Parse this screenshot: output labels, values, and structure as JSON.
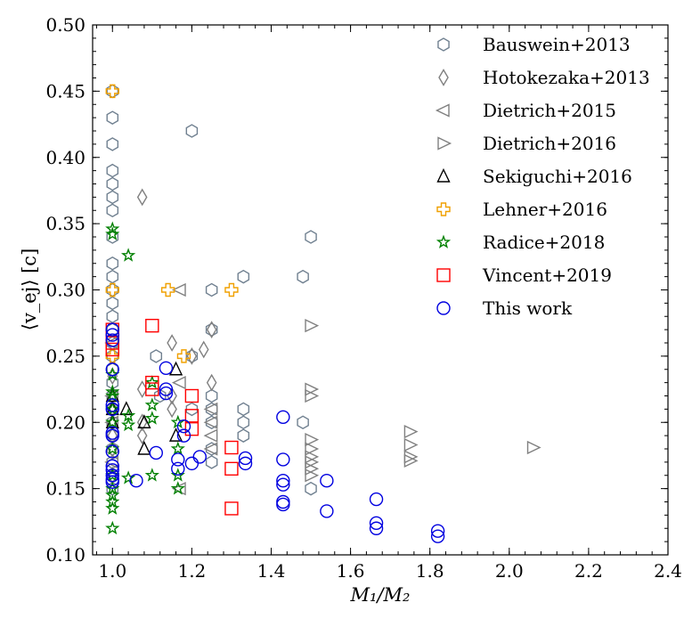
{
  "chart_data": {
    "type": "scatter",
    "title": "",
    "xlabel": "M₁/M₂",
    "ylabel": "⟨v_ej⟩ [c]",
    "xlim": [
      0.95,
      2.4
    ],
    "ylim": [
      0.1,
      0.5
    ],
    "x_ticks": [
      "1.0",
      "1.2",
      "1.4",
      "1.6",
      "1.8",
      "2.0",
      "2.2",
      "2.4"
    ],
    "y_ticks": [
      "0.10",
      "0.15",
      "0.20",
      "0.25",
      "0.30",
      "0.35",
      "0.40",
      "0.45",
      "0.50"
    ],
    "x_tick_values": [
      1.0,
      1.2,
      1.4,
      1.6,
      1.8,
      2.0,
      2.2,
      2.4
    ],
    "y_tick_values": [
      0.1,
      0.15,
      0.2,
      0.25,
      0.3,
      0.35,
      0.4,
      0.45,
      0.5
    ],
    "grid": false,
    "legend_position": "top-right",
    "series": [
      {
        "name": "Bauswein+2013",
        "marker": "hexagon",
        "color": "#708090",
        "points": [
          [
            1.0,
            0.45
          ],
          [
            1.0,
            0.43
          ],
          [
            1.0,
            0.41
          ],
          [
            1.0,
            0.39
          ],
          [
            1.0,
            0.38
          ],
          [
            1.0,
            0.37
          ],
          [
            1.0,
            0.36
          ],
          [
            1.0,
            0.34
          ],
          [
            1.0,
            0.32
          ],
          [
            1.0,
            0.31
          ],
          [
            1.0,
            0.3
          ],
          [
            1.0,
            0.29
          ],
          [
            1.0,
            0.28
          ],
          [
            1.0,
            0.27
          ],
          [
            1.0,
            0.26
          ],
          [
            1.0,
            0.25
          ],
          [
            1.0,
            0.24
          ],
          [
            1.0,
            0.23
          ],
          [
            1.0,
            0.22
          ],
          [
            1.0,
            0.21
          ],
          [
            1.0,
            0.2
          ],
          [
            1.0,
            0.19
          ],
          [
            1.0,
            0.18
          ],
          [
            1.0,
            0.17
          ],
          [
            1.0,
            0.16
          ],
          [
            1.0,
            0.15
          ],
          [
            1.11,
            0.25
          ],
          [
            1.12,
            0.22
          ],
          [
            1.2,
            0.42
          ],
          [
            1.2,
            0.25
          ],
          [
            1.2,
            0.21
          ],
          [
            1.25,
            0.3
          ],
          [
            1.25,
            0.27
          ],
          [
            1.25,
            0.22
          ],
          [
            1.25,
            0.21
          ],
          [
            1.25,
            0.2
          ],
          [
            1.25,
            0.18
          ],
          [
            1.25,
            0.17
          ],
          [
            1.33,
            0.31
          ],
          [
            1.33,
            0.21
          ],
          [
            1.33,
            0.2
          ],
          [
            1.33,
            0.19
          ],
          [
            1.48,
            0.31
          ],
          [
            1.48,
            0.2
          ],
          [
            1.5,
            0.34
          ],
          [
            1.5,
            0.15
          ]
        ]
      },
      {
        "name": "Hotokezaka+2013",
        "marker": "thin-diamond",
        "color": "#808080",
        "points": [
          [
            1.0,
            0.235
          ],
          [
            1.0,
            0.21
          ],
          [
            1.0,
            0.19
          ],
          [
            1.0,
            0.18
          ],
          [
            1.0,
            0.16
          ],
          [
            1.075,
            0.37
          ],
          [
            1.075,
            0.225
          ],
          [
            1.075,
            0.2
          ],
          [
            1.075,
            0.19
          ],
          [
            1.15,
            0.26
          ],
          [
            1.15,
            0.22
          ],
          [
            1.15,
            0.21
          ],
          [
            1.2,
            0.25
          ],
          [
            1.23,
            0.255
          ],
          [
            1.25,
            0.27
          ],
          [
            1.25,
            0.23
          ]
        ]
      },
      {
        "name": "Dietrich+2015",
        "marker": "triangle-left",
        "color": "#808080",
        "points": [
          [
            1.0,
            0.26
          ],
          [
            1.0,
            0.22
          ],
          [
            1.0,
            0.2
          ],
          [
            1.0,
            0.17
          ],
          [
            1.17,
            0.3
          ],
          [
            1.17,
            0.23
          ],
          [
            1.17,
            0.15
          ],
          [
            1.25,
            0.21
          ],
          [
            1.25,
            0.2
          ],
          [
            1.25,
            0.19
          ],
          [
            1.25,
            0.18
          ]
        ]
      },
      {
        "name": "Dietrich+2016",
        "marker": "triangle-right",
        "color": "#808080",
        "points": [
          [
            1.5,
            0.273
          ],
          [
            1.5,
            0.225
          ],
          [
            1.5,
            0.22
          ],
          [
            1.5,
            0.187
          ],
          [
            1.5,
            0.18
          ],
          [
            1.5,
            0.174
          ],
          [
            1.5,
            0.17
          ],
          [
            1.5,
            0.165
          ],
          [
            1.5,
            0.16
          ],
          [
            1.75,
            0.193
          ],
          [
            1.75,
            0.183
          ],
          [
            1.75,
            0.174
          ],
          [
            1.75,
            0.171
          ],
          [
            2.06,
            0.181
          ]
        ]
      },
      {
        "name": "Sekiguchi+2016",
        "marker": "triangle-up",
        "color": "#000000",
        "points": [
          [
            1.0,
            0.22
          ],
          [
            1.0,
            0.21
          ],
          [
            1.0,
            0.2
          ],
          [
            1.035,
            0.21
          ],
          [
            1.08,
            0.2
          ],
          [
            1.08,
            0.18
          ],
          [
            1.16,
            0.24
          ],
          [
            1.16,
            0.19
          ]
        ]
      },
      {
        "name": "Lehner+2016",
        "marker": "plus",
        "color": "#f0a000",
        "points": [
          [
            1.0,
            0.45
          ],
          [
            1.0,
            0.3
          ],
          [
            1.0,
            0.25
          ],
          [
            1.14,
            0.3
          ],
          [
            1.3,
            0.3
          ],
          [
            1.18,
            0.25
          ]
        ]
      },
      {
        "name": "Radice+2018",
        "marker": "star",
        "color": "#008000",
        "points": [
          [
            1.0,
            0.346
          ],
          [
            1.0,
            0.342
          ],
          [
            1.0,
            0.236
          ],
          [
            1.0,
            0.223
          ],
          [
            1.0,
            0.22
          ],
          [
            1.0,
            0.21
          ],
          [
            1.0,
            0.2
          ],
          [
            1.0,
            0.18
          ],
          [
            1.0,
            0.16
          ],
          [
            1.0,
            0.15
          ],
          [
            1.0,
            0.145
          ],
          [
            1.0,
            0.14
          ],
          [
            1.0,
            0.135
          ],
          [
            1.0,
            0.12
          ],
          [
            1.04,
            0.326
          ],
          [
            1.04,
            0.205
          ],
          [
            1.04,
            0.198
          ],
          [
            1.04,
            0.158
          ],
          [
            1.1,
            0.23
          ],
          [
            1.1,
            0.213
          ],
          [
            1.1,
            0.203
          ],
          [
            1.1,
            0.16
          ],
          [
            1.165,
            0.2
          ],
          [
            1.165,
            0.18
          ],
          [
            1.165,
            0.16
          ],
          [
            1.165,
            0.15
          ]
        ]
      },
      {
        "name": "Vincent+2019",
        "marker": "square",
        "color": "#ff0000",
        "points": [
          [
            1.0,
            0.27
          ],
          [
            1.0,
            0.26
          ],
          [
            1.0,
            0.255
          ],
          [
            1.1,
            0.273
          ],
          [
            1.1,
            0.23
          ],
          [
            1.1,
            0.225
          ],
          [
            1.2,
            0.22
          ],
          [
            1.2,
            0.205
          ],
          [
            1.2,
            0.195
          ],
          [
            1.3,
            0.181
          ],
          [
            1.3,
            0.165
          ],
          [
            1.3,
            0.135
          ]
        ]
      },
      {
        "name": "This work",
        "marker": "circle",
        "color": "#0000e0",
        "points": [
          [
            1.0,
            0.27
          ],
          [
            1.0,
            0.266
          ],
          [
            1.0,
            0.262
          ],
          [
            1.0,
            0.24
          ],
          [
            1.0,
            0.213
          ],
          [
            1.0,
            0.21
          ],
          [
            1.0,
            0.192
          ],
          [
            1.0,
            0.19
          ],
          [
            1.0,
            0.178
          ],
          [
            1.0,
            0.167
          ],
          [
            1.0,
            0.164
          ],
          [
            1.0,
            0.16
          ],
          [
            1.0,
            0.157
          ],
          [
            1.0,
            0.155
          ],
          [
            1.06,
            0.156
          ],
          [
            1.11,
            0.177
          ],
          [
            1.135,
            0.241
          ],
          [
            1.135,
            0.225
          ],
          [
            1.135,
            0.222
          ],
          [
            1.165,
            0.172
          ],
          [
            1.165,
            0.165
          ],
          [
            1.18,
            0.197
          ],
          [
            1.18,
            0.19
          ],
          [
            1.2,
            0.169
          ],
          [
            1.22,
            0.174
          ],
          [
            1.335,
            0.173
          ],
          [
            1.335,
            0.169
          ],
          [
            1.43,
            0.204
          ],
          [
            1.43,
            0.172
          ],
          [
            1.43,
            0.156
          ],
          [
            1.43,
            0.153
          ],
          [
            1.43,
            0.14
          ],
          [
            1.43,
            0.138
          ],
          [
            1.54,
            0.156
          ],
          [
            1.54,
            0.133
          ],
          [
            1.665,
            0.142
          ],
          [
            1.665,
            0.124
          ],
          [
            1.665,
            0.12
          ],
          [
            1.82,
            0.118
          ],
          [
            1.82,
            0.114
          ]
        ]
      }
    ]
  }
}
